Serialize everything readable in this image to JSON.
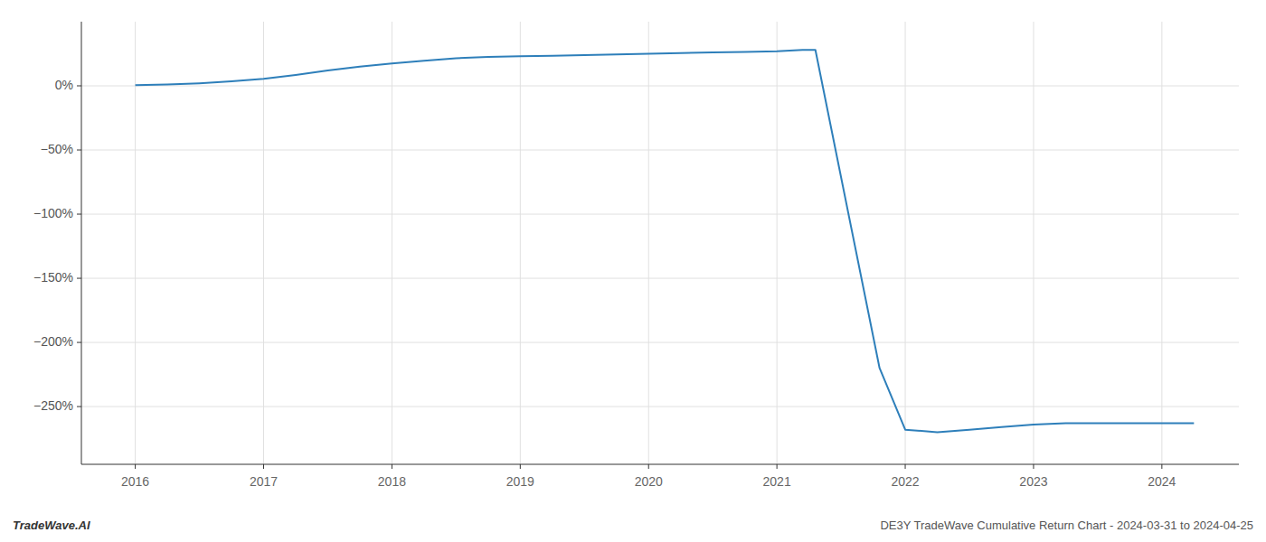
{
  "chart_data": {
    "type": "line",
    "title": "DE3Y TradeWave Cumulative Return Chart - 2024-03-31 to 2024-04-25",
    "annotations": [
      "TradeWave.AI"
    ],
    "x": [
      2016.0,
      2016.25,
      2016.5,
      2016.75,
      2017.0,
      2017.25,
      2017.5,
      2017.75,
      2018.0,
      2018.25,
      2018.5,
      2018.75,
      2019.0,
      2019.25,
      2019.5,
      2019.75,
      2020.0,
      2020.25,
      2020.5,
      2020.75,
      2021.0,
      2021.1,
      2021.2,
      2021.3,
      2021.8,
      2022.0,
      2022.25,
      2022.5,
      2022.75,
      2023.0,
      2023.25,
      2023.5,
      2023.75,
      2024.0,
      2024.25
    ],
    "values": [
      0.5,
      1.0,
      2.0,
      3.5,
      5.5,
      8.5,
      12.0,
      15.0,
      17.5,
      19.5,
      21.5,
      22.5,
      23.0,
      23.5,
      24.0,
      24.5,
      25.0,
      25.5,
      26.0,
      26.5,
      27.0,
      27.5,
      28.0,
      28.0,
      -220.0,
      -268.0,
      -270.0,
      -268.0,
      -266.0,
      -264.0,
      -263.0,
      -263.0,
      -263.0,
      -263.0,
      -263.0
    ],
    "color": "#2e7fba",
    "xlim": [
      2015.58,
      2024.6
    ],
    "ylim": [
      -295,
      50
    ],
    "xticks": [
      2016,
      2017,
      2018,
      2019,
      2020,
      2021,
      2022,
      2023,
      2024
    ],
    "yticks": [
      {
        "value": 0,
        "label": "0%"
      },
      {
        "value": -50,
        "label": "−50%"
      },
      {
        "value": -100,
        "label": "−100%"
      },
      {
        "value": -150,
        "label": "−150%"
      },
      {
        "value": -200,
        "label": "−200%"
      },
      {
        "value": -250,
        "label": "−250%"
      }
    ],
    "grid": true
  }
}
